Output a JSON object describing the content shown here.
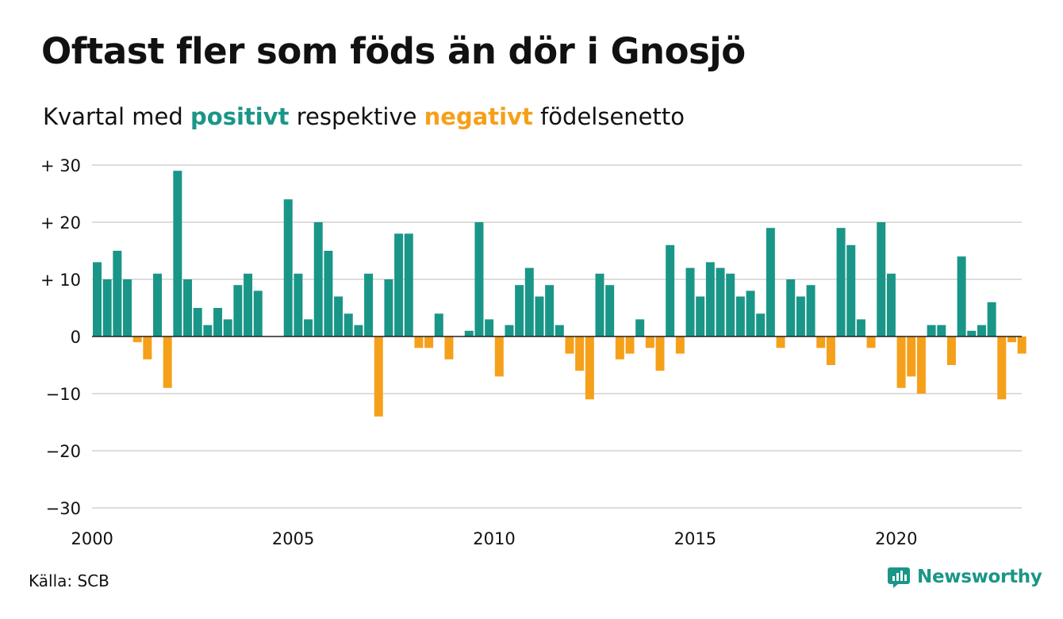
{
  "header": {
    "title": "Oftast fler som föds än dör i Gnosjö",
    "subtitle_prefix": "Kvartal med ",
    "subtitle_positive": "positivt",
    "subtitle_middle": " respektive ",
    "subtitle_negative": "negativt",
    "subtitle_suffix": " födelsenetto"
  },
  "footer": {
    "source": "Källa: SCB",
    "brand": "Newsworthy",
    "brand_icon": "newsworthy-logo-icon"
  },
  "colors": {
    "positive": "#1a9688",
    "negative": "#f5a01a",
    "grid": "#dddddd",
    "zero_line": "#222222"
  },
  "chart_data": {
    "type": "bar",
    "title": "Oftast fler som föds än dör i Gnosjö",
    "subtitle": "Kvartal med positivt respektive negativt födelsenetto",
    "xlabel": "",
    "ylabel": "",
    "ylim": [
      -30,
      30
    ],
    "yticks": [
      30,
      20,
      10,
      0,
      -10,
      -20,
      -30
    ],
    "ytick_labels": [
      "+ 30",
      "+ 20",
      "+ 10",
      "0",
      "−10",
      "−20",
      "−30"
    ],
    "xticks": [
      2000,
      2005,
      2010,
      2015,
      2020
    ],
    "xtick_labels": [
      "2000",
      "2005",
      "2010",
      "2015",
      "2020"
    ],
    "x_start": 2000,
    "periods_per_year": 4,
    "grid": true,
    "legend": "none",
    "values": [
      13,
      10,
      15,
      10,
      -1,
      -4,
      11,
      -9,
      29,
      10,
      5,
      2,
      5,
      3,
      9,
      11,
      8,
      0,
      0,
      24,
      11,
      3,
      20,
      15,
      7,
      4,
      2,
      11,
      -14,
      10,
      18,
      18,
      -2,
      -2,
      4,
      -4,
      0,
      1,
      20,
      3,
      -7,
      2,
      9,
      12,
      7,
      9,
      2,
      -3,
      -6,
      -11,
      11,
      9,
      -4,
      -3,
      3,
      -2,
      -6,
      16,
      -3,
      12,
      7,
      13,
      12,
      11,
      7,
      8,
      4,
      19,
      -2,
      10,
      7,
      9,
      -2,
      -5,
      19,
      16,
      3,
      -2,
      20,
      11,
      -9,
      -7,
      -10,
      2,
      2,
      -5,
      14,
      1,
      2,
      6,
      -11,
      -1,
      -3
    ]
  }
}
